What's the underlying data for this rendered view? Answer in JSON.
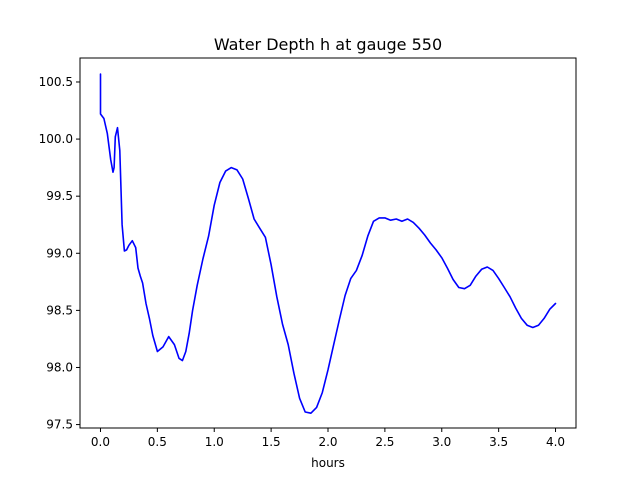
{
  "chart_data": {
    "type": "line",
    "title": "Water Depth h at gauge 550",
    "xlabel": "hours",
    "ylabel": "",
    "xlim": [
      -0.18,
      4.18
    ],
    "ylim": [
      97.47,
      100.71
    ],
    "xticks": [
      "0.0",
      "0.5",
      "1.0",
      "1.5",
      "2.0",
      "2.5",
      "3.0",
      "3.5",
      "4.0"
    ],
    "yticks": [
      "97.5",
      "98.0",
      "98.5",
      "99.0",
      "99.5",
      "100.0",
      "100.5"
    ],
    "grid": false,
    "series": [
      {
        "name": "",
        "color": "#0000ff",
        "x": [
          0.0,
          0.0,
          0.0,
          0.03,
          0.06,
          0.09,
          0.11,
          0.12,
          0.13,
          0.15,
          0.17,
          0.19,
          0.21,
          0.23,
          0.25,
          0.28,
          0.31,
          0.33,
          0.35,
          0.37,
          0.4,
          0.43,
          0.46,
          0.5,
          0.55,
          0.6,
          0.65,
          0.69,
          0.72,
          0.75,
          0.78,
          0.81,
          0.85,
          0.9,
          0.95,
          1.0,
          1.05,
          1.1,
          1.15,
          1.2,
          1.25,
          1.3,
          1.35,
          1.4,
          1.45,
          1.5,
          1.55,
          1.6,
          1.65,
          1.7,
          1.75,
          1.8,
          1.85,
          1.9,
          1.95,
          2.0,
          2.05,
          2.1,
          2.15,
          2.2,
          2.25,
          2.3,
          2.35,
          2.4,
          2.45,
          2.5,
          2.55,
          2.6,
          2.65,
          2.7,
          2.75,
          2.8,
          2.85,
          2.9,
          2.95,
          3.0,
          3.05,
          3.1,
          3.15,
          3.2,
          3.25,
          3.3,
          3.35,
          3.4,
          3.45,
          3.5,
          3.55,
          3.6,
          3.65,
          3.7,
          3.75,
          3.8,
          3.85,
          3.9,
          3.95,
          4.0
        ],
        "y": [
          100.57,
          100.23,
          100.22,
          100.18,
          100.05,
          99.82,
          99.71,
          99.75,
          100.02,
          100.1,
          99.9,
          99.25,
          99.02,
          99.03,
          99.07,
          99.11,
          99.05,
          98.87,
          98.8,
          98.74,
          98.56,
          98.43,
          98.28,
          98.14,
          98.18,
          98.27,
          98.2,
          98.08,
          98.06,
          98.14,
          98.3,
          98.5,
          98.72,
          98.95,
          99.15,
          99.42,
          99.62,
          99.72,
          99.75,
          99.73,
          99.65,
          99.48,
          99.3,
          99.22,
          99.14,
          98.9,
          98.62,
          98.38,
          98.2,
          97.95,
          97.73,
          97.61,
          97.6,
          97.65,
          97.78,
          97.98,
          98.2,
          98.42,
          98.63,
          98.78,
          98.85,
          98.98,
          99.15,
          99.28,
          99.31,
          99.31,
          99.29,
          99.3,
          99.28,
          99.3,
          99.27,
          99.22,
          99.16,
          99.09,
          99.03,
          98.96,
          98.87,
          98.77,
          98.7,
          98.69,
          98.72,
          98.8,
          98.86,
          98.88,
          98.85,
          98.78,
          98.7,
          98.62,
          98.52,
          98.43,
          98.37,
          98.35,
          98.37,
          98.43,
          98.51,
          98.56
        ]
      }
    ]
  }
}
